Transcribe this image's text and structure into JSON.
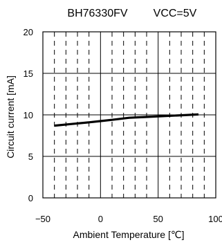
{
  "header": {
    "part_number": "BH76330FV",
    "condition": "VCC=5V"
  },
  "chart_data": {
    "type": "line",
    "title": "BH76330FV",
    "subtitle": "VCC=5V",
    "xlabel": "Ambient Temperature [℃]",
    "ylabel": "Circuit current [mA]",
    "xlim": [
      -50,
      100
    ],
    "ylim": [
      0,
      20
    ],
    "x_ticks": [
      -50,
      0,
      50,
      100
    ],
    "x_tick_labels": [
      "−50",
      "0",
      "50",
      "100"
    ],
    "y_ticks": [
      0,
      5,
      10,
      15,
      20
    ],
    "y_tick_labels": [
      "0",
      "5",
      "10",
      "15",
      "20"
    ],
    "x_minor_dashed": [
      -40,
      -30,
      -20,
      -10,
      10,
      20,
      30,
      40,
      60,
      70,
      80,
      90
    ],
    "y_major_solid": [
      5,
      10,
      15
    ],
    "grid": true,
    "series": [
      {
        "x": [
          -40,
          -25,
          -10,
          0,
          10,
          25,
          40,
          55,
          70,
          85
        ],
        "y": [
          8.7,
          8.9,
          9.1,
          9.25,
          9.4,
          9.65,
          9.75,
          9.85,
          9.95,
          10.05
        ],
        "color": "#000000"
      }
    ]
  }
}
